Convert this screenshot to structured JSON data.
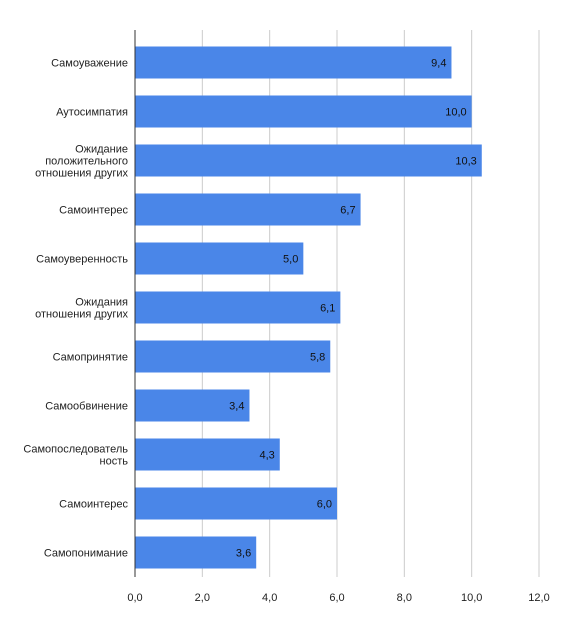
{
  "chart_data": {
    "type": "bar",
    "orientation": "horizontal",
    "categories": [
      "Самоуважение",
      "Аутосимпатия",
      "Ожидание\nположительного\nотношения других",
      "Самоинтерес",
      "Самоуверенность",
      "Ожидания\nотношения других",
      "Самопринятие",
      "Самообвинение",
      "Самопоследователь\nность",
      "Самоинтерес",
      "Самопонимание"
    ],
    "values": [
      9.4,
      10.0,
      10.3,
      6.7,
      5.0,
      6.1,
      5.8,
      3.4,
      4.3,
      6.0,
      3.6
    ],
    "value_labels": [
      "9,4",
      "10,0",
      "10,3",
      "6,7",
      "5,0",
      "6,1",
      "5,8",
      "3,4",
      "4,3",
      "6,0",
      "3,6"
    ],
    "xlim": [
      0,
      12
    ],
    "xticks": [
      0,
      2,
      4,
      6,
      8,
      10,
      12
    ],
    "xtick_labels": [
      "0,0",
      "2,0",
      "4,0",
      "6,0",
      "8,0",
      "10,0",
      "12,0"
    ],
    "grid": "vertical",
    "legend": "none",
    "bar_color": "#4a86e8",
    "title": "",
    "xlabel": "",
    "ylabel": ""
  }
}
